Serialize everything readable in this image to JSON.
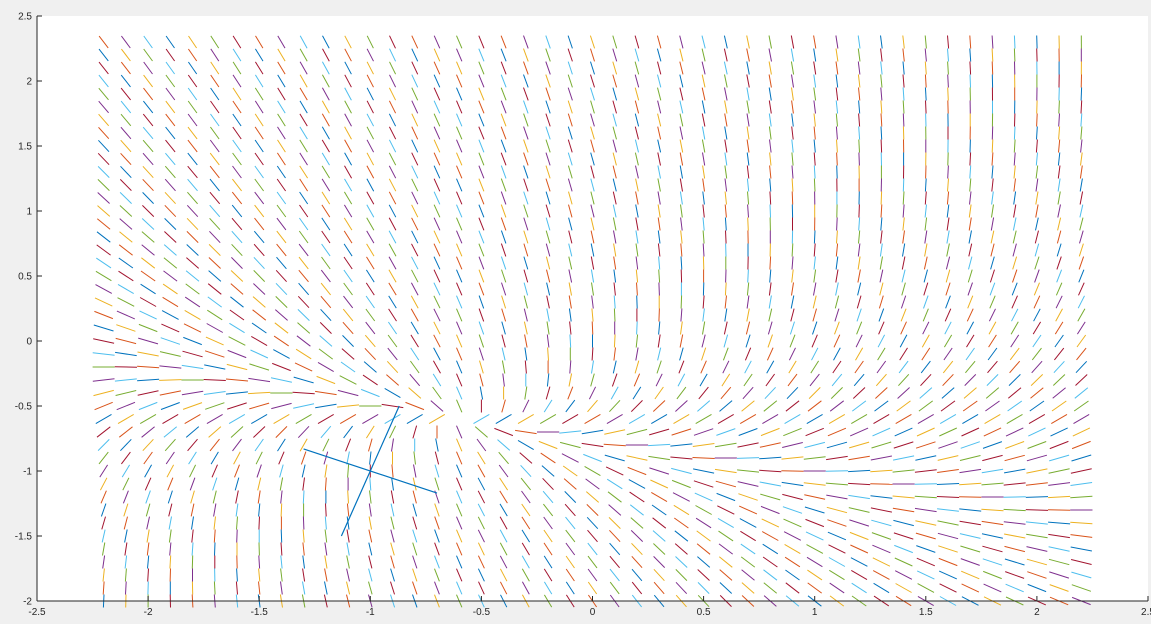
{
  "chart_data": {
    "type": "line",
    "title": "",
    "xlabel": "",
    "ylabel": "",
    "xlim": [
      -2.5,
      2.5
    ],
    "ylim": [
      -2,
      2.5
    ],
    "x_ticks": [
      -2.5,
      -2,
      -1.5,
      -1,
      -0.5,
      0,
      0.5,
      1,
      1.5,
      2,
      2.5
    ],
    "x_tick_labels": [
      "-2.5",
      "-2",
      "-1.5",
      "-1",
      "-0.5",
      "0",
      "0.5",
      "1",
      "1.5",
      "2",
      "2.5"
    ],
    "y_ticks": [
      -2,
      -1.5,
      -1,
      -0.5,
      0,
      0.5,
      1,
      1.5,
      2,
      2.5
    ],
    "y_tick_labels": [
      "-2",
      "-1.5",
      "-1",
      "-0.5",
      "0",
      "0.5",
      "1",
      "1.5",
      "2",
      "2.5"
    ],
    "grid": false,
    "legend": "none",
    "background": "#ffffff",
    "figure_background": "#f0f0f0",
    "series_colors": [
      "#0072BD",
      "#D95319",
      "#EDB120",
      "#7E2F8E",
      "#77AC30",
      "#4DBEEE",
      "#A2142F"
    ],
    "field": {
      "description": "slope field of a 2D linear system with a saddle point",
      "x_range": [
        -2.2,
        2.2
      ],
      "y_range": [
        -2,
        2.3
      ],
      "grid_spacing": 0.1,
      "segment_length": 0.05
    },
    "series": [
      {
        "name": "",
        "color": "#0072BD",
        "x": [
          -1.3,
          -0.7
        ],
        "y": [
          -0.83,
          -1.17
        ]
      },
      {
        "name": "",
        "color": "#0072BD",
        "x": [
          -1.13,
          -0.87
        ],
        "y": [
          -1.5,
          -0.5
        ]
      }
    ],
    "saddle_point": [
      -1,
      -1
    ]
  }
}
